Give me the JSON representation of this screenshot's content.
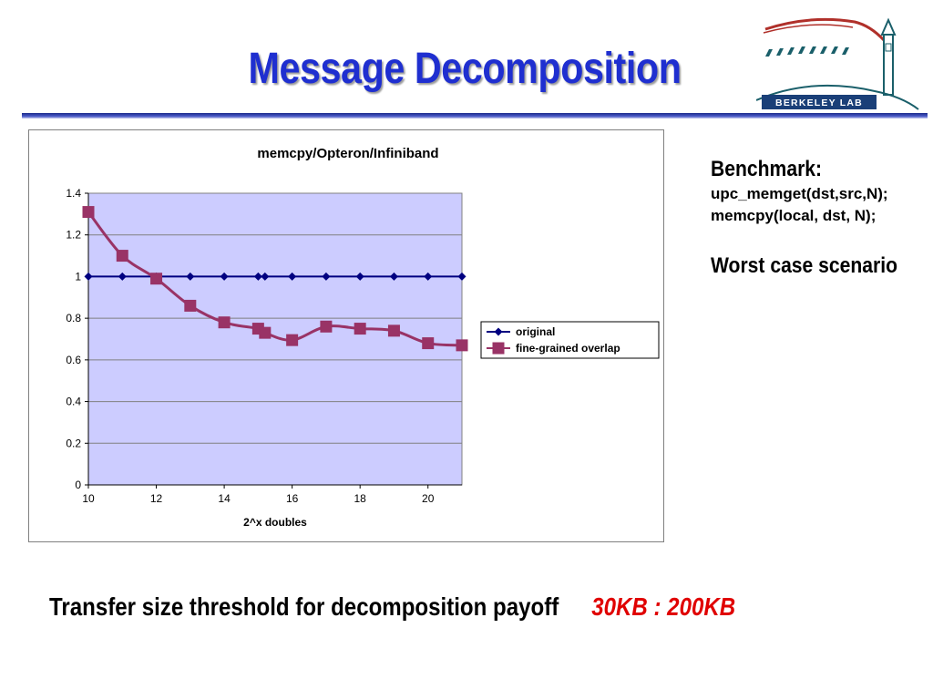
{
  "slide": {
    "title": "Message Decomposition",
    "logo_text": "BERKELEY LAB",
    "benchmark_heading": "Benchmark:",
    "benchmark_line1": "upc_memget(dst,src,N);",
    "benchmark_line2": "memcpy(local, dst, N);",
    "scenario": "Worst case scenario",
    "threshold_label": "Transfer size threshold for decomposition payoff",
    "threshold_value": "30KB : 200KB",
    "colors": {
      "title": "#1f2fd0",
      "threshold_value": "#e00000",
      "plot_bg": "#ccccff"
    }
  },
  "chart_data": {
    "type": "line",
    "title": "memcpy/Opteron/Infiniband",
    "xlabel": "2^x doubles",
    "ylabel": "",
    "xlim": [
      10,
      21
    ],
    "ylim": [
      0,
      1.4
    ],
    "xticks": [
      "10",
      "12",
      "14",
      "16",
      "18",
      "20"
    ],
    "yticks": [
      "0",
      "0.2",
      "0.4",
      "0.6",
      "0.8",
      "1",
      "1.2",
      "1.4"
    ],
    "grid": true,
    "legend": "right",
    "series": [
      {
        "name": "original",
        "color": "#000080",
        "marker": "diamond",
        "x": [
          10,
          11,
          12,
          13,
          14,
          15,
          15.2,
          16,
          17,
          18,
          19,
          20,
          21
        ],
        "y": [
          1,
          1,
          1,
          1,
          1,
          1,
          1,
          1,
          1,
          1,
          1,
          1,
          1
        ]
      },
      {
        "name": "fine-grained overlap",
        "color": "#993366",
        "marker": "square",
        "x": [
          10,
          11,
          12,
          13,
          14,
          15,
          15.2,
          16,
          17,
          18,
          19,
          20,
          21
        ],
        "y": [
          1.31,
          1.1,
          0.99,
          0.86,
          0.78,
          0.75,
          0.73,
          0.695,
          0.76,
          0.75,
          0.74,
          0.68,
          0.67
        ]
      }
    ]
  }
}
